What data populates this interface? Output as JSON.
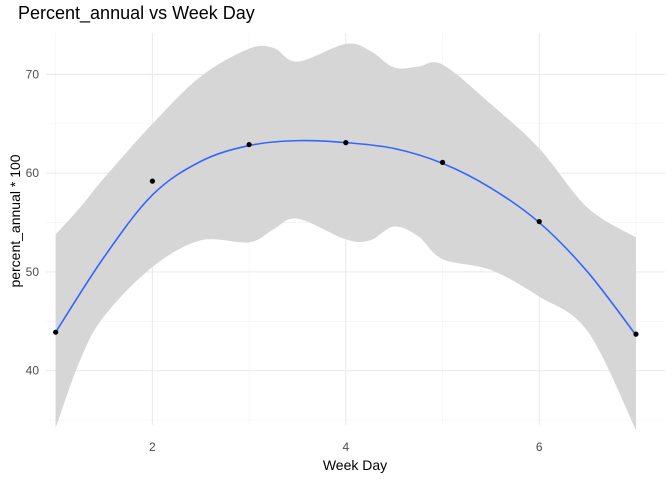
{
  "chart_data": {
    "type": "scatter",
    "title": "Percent_annual vs Week Day",
    "xlabel": "Week Day",
    "ylabel": "percent_annual * 100",
    "xlim": [
      0.9,
      7.3
    ],
    "ylim": [
      34.5,
      74.2
    ],
    "x_ticks": [
      2,
      4,
      6
    ],
    "y_ticks": [
      40,
      50,
      60,
      70
    ],
    "grid": true,
    "points": [
      {
        "x": 1,
        "y": 43.9
      },
      {
        "x": 2,
        "y": 59.2
      },
      {
        "x": 3,
        "y": 62.9
      },
      {
        "x": 4,
        "y": 63.1
      },
      {
        "x": 5,
        "y": 61.1
      },
      {
        "x": 6,
        "y": 55.1
      },
      {
        "x": 7,
        "y": 43.7
      }
    ],
    "smooth": {
      "x": [
        1,
        1.5,
        2,
        2.5,
        3,
        3.5,
        4,
        4.5,
        5,
        5.5,
        6,
        6.5,
        7
      ],
      "y": [
        43.9,
        51.5,
        57.8,
        61.2,
        62.8,
        63.3,
        63.1,
        62.5,
        61.0,
        58.5,
        55.0,
        50.0,
        43.6
      ]
    },
    "band": {
      "x": [
        1,
        1.25,
        1.5,
        2,
        2.5,
        3,
        3.25,
        3.5,
        4,
        4.25,
        4.5,
        4.75,
        5,
        5.5,
        6,
        6.5,
        7
      ],
      "upper": [
        53.8,
        56.5,
        59.5,
        65.0,
        69.8,
        72.6,
        72.7,
        71.3,
        73.1,
        72.4,
        70.7,
        70.8,
        71.0,
        67.0,
        62.5,
        56.5,
        53.5
      ],
      "lower": [
        34.2,
        41.0,
        45.5,
        50.5,
        53.2,
        53.0,
        54.3,
        55.4,
        53.3,
        53.2,
        54.6,
        53.6,
        51.3,
        50.2,
        47.5,
        44.0,
        34.0
      ]
    },
    "colors": {
      "line": "#3366FF",
      "band": "#D6D6D6",
      "points": "#000000",
      "grid_major": "#EBEBEB",
      "grid_minor": "#F2F2F2"
    }
  }
}
